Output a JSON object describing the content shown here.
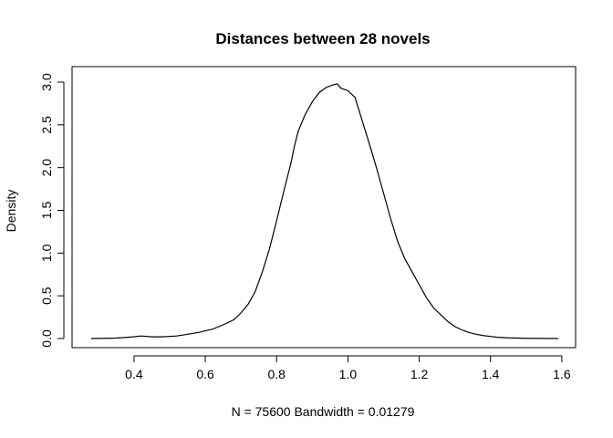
{
  "chart_data": {
    "type": "line",
    "title": "Distances between 28 novels",
    "xlabel": "N = 75600   Bandwidth = 0.01279",
    "ylabel": "Density",
    "xlim": [
      0.28,
      1.59
    ],
    "ylim": [
      0,
      3.0
    ],
    "grid": false,
    "legend": "none",
    "x_ticks": [
      0.4,
      0.6,
      0.8,
      1.0,
      1.2,
      1.4,
      1.6
    ],
    "x_tick_labels": [
      "0.4",
      "0.6",
      "0.8",
      "1.0",
      "1.2",
      "1.4",
      "1.6"
    ],
    "y_ticks": [
      0.0,
      0.5,
      1.0,
      1.5,
      2.0,
      2.5,
      3.0
    ],
    "y_tick_labels": [
      "0.0",
      "0.5",
      "1.0",
      "1.5",
      "2.0",
      "2.5",
      "3.0"
    ],
    "series": [
      {
        "color": "#000000",
        "x": [
          0.28,
          0.35,
          0.4,
          0.42,
          0.45,
          0.48,
          0.52,
          0.55,
          0.58,
          0.62,
          0.65,
          0.68,
          0.7,
          0.72,
          0.74,
          0.76,
          0.78,
          0.8,
          0.82,
          0.84,
          0.85,
          0.86,
          0.88,
          0.9,
          0.92,
          0.94,
          0.96,
          0.97,
          0.98,
          1.0,
          1.02,
          1.04,
          1.06,
          1.08,
          1.1,
          1.12,
          1.14,
          1.16,
          1.18,
          1.2,
          1.22,
          1.24,
          1.26,
          1.28,
          1.3,
          1.32,
          1.34,
          1.36,
          1.38,
          1.4,
          1.42,
          1.45,
          1.5,
          1.55,
          1.59
        ],
        "y": [
          0.0,
          0.005,
          0.02,
          0.03,
          0.02,
          0.02,
          0.03,
          0.05,
          0.07,
          0.11,
          0.16,
          0.22,
          0.3,
          0.4,
          0.55,
          0.78,
          1.05,
          1.38,
          1.72,
          2.05,
          2.25,
          2.42,
          2.62,
          2.77,
          2.88,
          2.94,
          2.97,
          2.98,
          2.93,
          2.9,
          2.82,
          2.55,
          2.28,
          2.0,
          1.7,
          1.4,
          1.13,
          0.93,
          0.78,
          0.63,
          0.48,
          0.36,
          0.28,
          0.2,
          0.14,
          0.1,
          0.07,
          0.05,
          0.035,
          0.025,
          0.015,
          0.008,
          0.003,
          0.001,
          0.0
        ]
      }
    ]
  }
}
